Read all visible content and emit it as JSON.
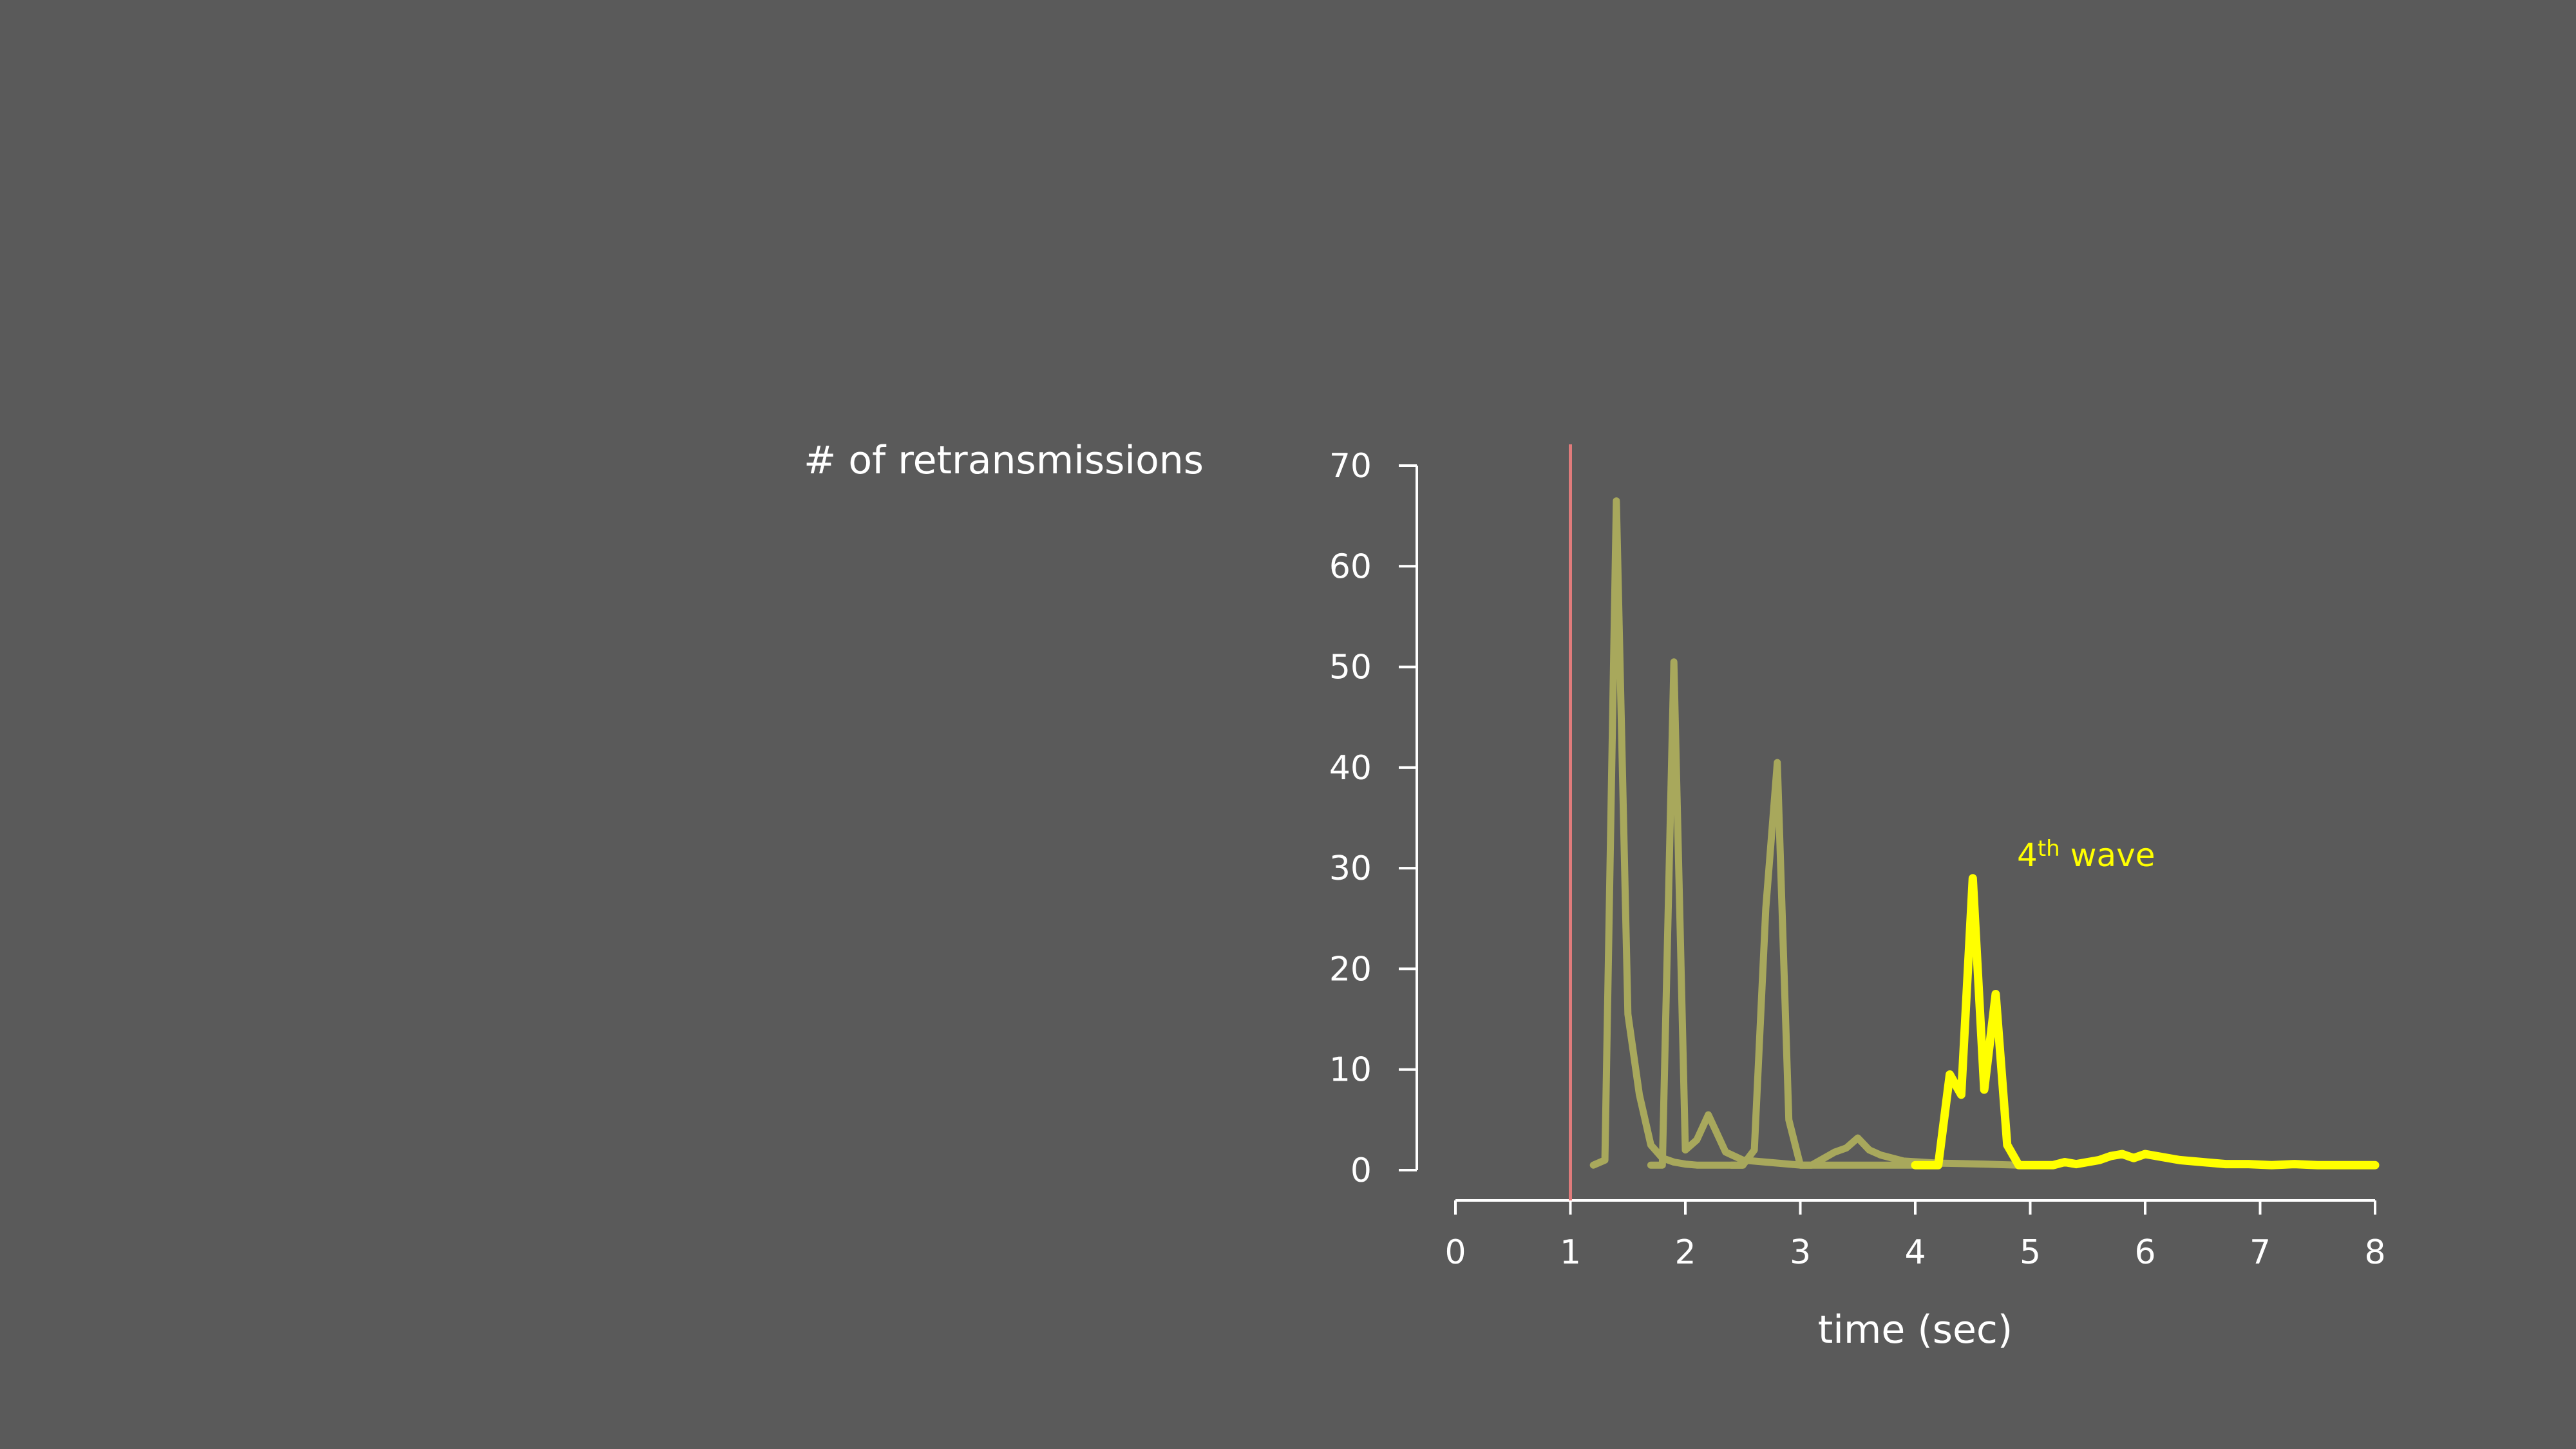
{
  "colors": {
    "background": "#5a5a5a",
    "axis": "#ffffff",
    "text": "#ffffff",
    "marker": "#e07b7b",
    "faded_wave": "#a8a85c",
    "highlight_wave": "#ffff00"
  },
  "chart_data": {
    "type": "line",
    "ylabel": "# of retransmissions",
    "xlabel": "time (sec)",
    "xlim": [
      0,
      8
    ],
    "ylim": [
      0,
      70
    ],
    "x_ticks": [
      "0",
      "1",
      "2",
      "3",
      "4",
      "5",
      "6",
      "7",
      "8"
    ],
    "y_ticks": [
      "0",
      "10",
      "20",
      "30",
      "40",
      "50",
      "60",
      "70"
    ],
    "grid": false,
    "vertical_marker_x": 1,
    "annotation": {
      "text_main": "4",
      "text_sup": "th",
      "text_rest": " wave",
      "x": 4.75,
      "y": 31
    },
    "series": [
      {
        "highlight": false,
        "x": [
          1.2,
          1.3,
          1.4,
          1.5,
          1.6,
          1.7,
          1.8,
          1.9,
          2.0,
          2.1,
          2.3,
          2.5
        ],
        "y": [
          0.5,
          1,
          66.5,
          15.5,
          7.5,
          2.5,
          1.2,
          0.8,
          0.6,
          0.5,
          0.5,
          0.5
        ]
      },
      {
        "highlight": false,
        "x": [
          1.7,
          1.8,
          1.9,
          2.0,
          2.1,
          2.2,
          2.35,
          2.5,
          2.7,
          2.9,
          3.0,
          3.5,
          4.0
        ],
        "y": [
          0.5,
          0.5,
          50.5,
          2,
          3,
          5.5,
          1.8,
          1,
          0.8,
          0.6,
          0.5,
          0.5,
          0.5
        ]
      },
      {
        "highlight": false,
        "x": [
          2.4,
          2.5,
          2.6,
          2.7,
          2.8,
          2.9,
          3.0,
          3.1,
          3.3,
          3.4,
          3.5,
          3.6,
          3.7,
          3.9,
          4.2,
          4.6,
          4.9
        ],
        "y": [
          0.5,
          0.5,
          2,
          26,
          40.5,
          5,
          0.5,
          0.5,
          1.8,
          2.2,
          3.2,
          2,
          1.5,
          0.9,
          0.7,
          0.6,
          0.5
        ]
      },
      {
        "highlight": true,
        "x": [
          4.0,
          4.1,
          4.2,
          4.3,
          4.4,
          4.5,
          4.6,
          4.7,
          4.8,
          4.9,
          5.0,
          5.2,
          5.3,
          5.4,
          5.6,
          5.7,
          5.8,
          5.9,
          6.0,
          6.1,
          6.3,
          6.5,
          6.7,
          6.9,
          7.1,
          7.3,
          7.5,
          8.0
        ],
        "y": [
          0.5,
          0.5,
          0.5,
          9.5,
          7.5,
          29,
          8,
          17.5,
          2.5,
          0.5,
          0.5,
          0.5,
          0.8,
          0.6,
          1,
          1.4,
          1.6,
          1.2,
          1.6,
          1.4,
          1,
          0.8,
          0.6,
          0.6,
          0.5,
          0.6,
          0.5,
          0.5
        ]
      }
    ]
  }
}
